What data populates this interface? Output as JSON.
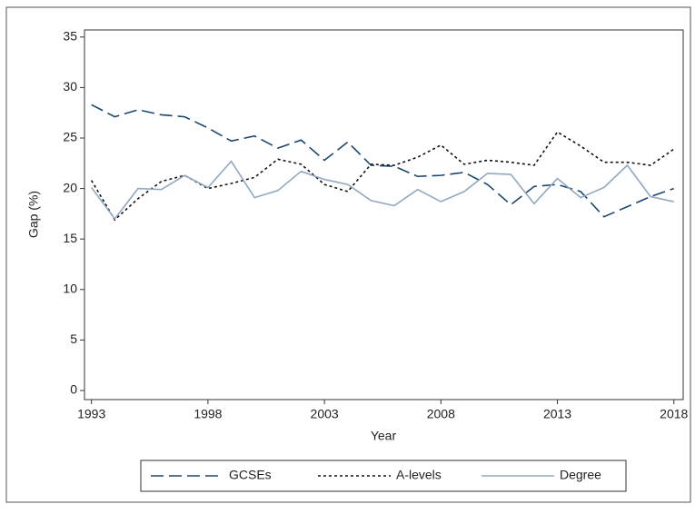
{
  "chart_data": {
    "type": "line",
    "xlabel": "Year",
    "ylabel": "Gap (%)",
    "x": [
      1993,
      1994,
      1995,
      1996,
      1997,
      1998,
      1999,
      2000,
      2001,
      2002,
      2003,
      2004,
      2005,
      2006,
      2007,
      2008,
      2009,
      2010,
      2011,
      2012,
      2013,
      2014,
      2015,
      2016,
      2017,
      2018
    ],
    "series": [
      {
        "name": "GCSEs",
        "color": "#1a476f",
        "dash": "14 6",
        "values": [
          28.3,
          27.1,
          27.8,
          27.3,
          27.1,
          26.0,
          24.7,
          25.2,
          24.0,
          24.8,
          22.8,
          24.6,
          22.3,
          22.2,
          21.2,
          21.3,
          21.6,
          20.4,
          18.4,
          20.2,
          20.4,
          19.7,
          17.2,
          18.2,
          19.2,
          20.0
        ]
      },
      {
        "name": "A-levels",
        "color": "#111111",
        "dash": "3 3",
        "values": [
          20.8,
          16.9,
          19.0,
          20.7,
          21.3,
          20.0,
          20.5,
          21.1,
          22.9,
          22.4,
          20.4,
          19.7,
          22.4,
          22.3,
          23.1,
          24.3,
          22.4,
          22.8,
          22.6,
          22.3,
          25.6,
          24.2,
          22.6,
          22.6,
          22.3,
          23.9
        ]
      },
      {
        "name": "Degree",
        "color": "#90a8c0",
        "dash": "none",
        "values": [
          20.1,
          17.0,
          20.0,
          19.9,
          21.3,
          20.1,
          22.7,
          19.1,
          19.8,
          21.7,
          20.9,
          20.4,
          18.8,
          18.3,
          19.9,
          18.7,
          19.7,
          21.5,
          21.4,
          18.5,
          21.0,
          19.1,
          20.1,
          22.3,
          19.2,
          18.7
        ]
      }
    ],
    "xlim": [
      1992.7,
      2018.4
    ],
    "xticks": [
      1993,
      1998,
      2003,
      2008,
      2013,
      2018
    ],
    "ylim": [
      -0.9,
      35.7
    ],
    "yticks": [
      0,
      5,
      10,
      15,
      20,
      25,
      30,
      35
    ],
    "grid": false,
    "legend": "bottom"
  }
}
